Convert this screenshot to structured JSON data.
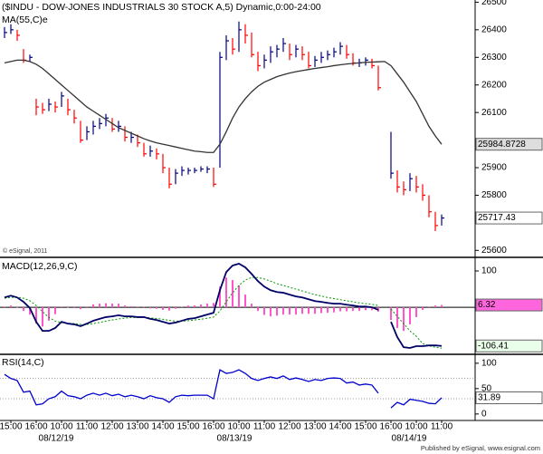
{
  "chart_data": [
    {
      "type": "ohlc",
      "title": "($INDU - DOW-JONES INDUSTRIALS 30 STOCK A,5) Dynamic,0:00-24:00",
      "annotation": "© eSignal, 2011",
      "ylim": [
        25578,
        26508
      ],
      "yticks": [
        25600,
        25800,
        25900,
        26100,
        26200,
        26300,
        26400,
        26500
      ],
      "up_color": "#000080",
      "down_color": "#ff0000",
      "high": [
        26410,
        26420,
        26400,
        26330,
        26310,
        26150,
        26135,
        26150,
        26140,
        26175,
        26150,
        26110,
        26070,
        26050,
        26070,
        26080,
        26095,
        26080,
        26070,
        26050,
        26030,
        26020,
        25990,
        25980,
        25970,
        25950,
        25900,
        25895,
        25905,
        25900,
        25900,
        25905,
        25905,
        25900,
        26320,
        26380,
        26370,
        26430,
        26420,
        26390,
        26320,
        26310,
        26340,
        26345,
        26370,
        26350,
        26345,
        26340,
        26320,
        26305,
        26320,
        26325,
        26335,
        26355,
        26345,
        26315,
        26295,
        26300,
        26295,
        26270,
        null,
        26030,
        25890,
        25850,
        25880,
        25870,
        25840,
        25800,
        25740,
        25730
      ],
      "low": [
        26370,
        26385,
        26360,
        26280,
        26285,
        26090,
        26095,
        26105,
        26100,
        26120,
        26090,
        26060,
        25990,
        26000,
        26020,
        26040,
        26050,
        26030,
        26030,
        25995,
        25990,
        25975,
        25940,
        25940,
        25930,
        25880,
        25825,
        25840,
        25870,
        25875,
        25880,
        25885,
        25880,
        25830,
        25900,
        26290,
        26310,
        26320,
        26350,
        26300,
        26250,
        26260,
        26280,
        26300,
        26320,
        26290,
        26300,
        26290,
        26260,
        26265,
        26280,
        26290,
        26300,
        26310,
        26295,
        26270,
        26265,
        26270,
        26260,
        26180,
        null,
        25860,
        25810,
        25800,
        25815,
        25810,
        25780,
        25720,
        25670,
        25690
      ],
      "close": [
        26390,
        26400,
        26380,
        26290,
        26300,
        26120,
        26110,
        26130,
        26120,
        26160,
        26110,
        26080,
        26000,
        26030,
        26050,
        26060,
        26080,
        26040,
        26050,
        26010,
        26010,
        25990,
        25950,
        25960,
        25950,
        25900,
        25840,
        25880,
        25890,
        25890,
        25890,
        25895,
        25895,
        25840,
        26300,
        26360,
        26330,
        26400,
        26380,
        26310,
        26270,
        26290,
        26320,
        26330,
        26350,
        26310,
        26330,
        26310,
        26270,
        26290,
        26300,
        26310,
        26320,
        26340,
        26310,
        26280,
        26280,
        26290,
        26270,
        26190,
        null,
        25880,
        25830,
        25820,
        25860,
        25830,
        25800,
        25740,
        25690,
        25717.43
      ],
      "series": [
        {
          "name": "MA(55,C)e",
          "color": "#333333",
          "values": [
            26280,
            26285,
            26290,
            26290,
            26285,
            26275,
            26260,
            26240,
            26220,
            26200,
            26180,
            26160,
            26140,
            26120,
            26105,
            26090,
            26075,
            26060,
            26045,
            26035,
            26025,
            26015,
            26005,
            25997,
            25990,
            25985,
            25980,
            25975,
            25970,
            25965,
            25960,
            25958,
            25955,
            25955,
            25985,
            26030,
            26080,
            26120,
            26150,
            26175,
            26195,
            26210,
            26220,
            26230,
            26237,
            26243,
            26248,
            26252,
            26256,
            26260,
            26263,
            26266,
            26270,
            26273,
            26276,
            26278,
            26280,
            26282,
            26283,
            26284,
            26285,
            26270,
            26240,
            26210,
            26175,
            26140,
            26095,
            26050,
            26015,
            25984.8728
          ]
        }
      ]
    },
    {
      "type": "macd",
      "title": "MACD(12,26,9,C)",
      "ylim": [
        -127,
        130
      ],
      "yticks": [
        100
      ],
      "baseline": 0,
      "macd_color": "#000066",
      "signal_color": "#009900",
      "histogram_color": "#ff55cc",
      "macd": [
        27,
        32,
        27,
        15,
        -2,
        -40,
        -65,
        -65,
        -57,
        -40,
        -45,
        -47,
        -52,
        -45,
        -37,
        -32,
        -27,
        -25,
        -22,
        -25,
        -25,
        -27,
        -27,
        -32,
        -35,
        -40,
        -45,
        -42,
        -37,
        -32,
        -30,
        -25,
        -20,
        -15,
        47,
        97,
        115,
        120,
        110,
        92,
        72,
        57,
        47,
        42,
        40,
        35,
        30,
        27,
        22,
        17,
        15,
        12,
        10,
        10,
        7,
        5,
        2,
        2,
        0,
        -7,
        null,
        -40,
        -82,
        -110,
        -112,
        -107,
        -107,
        -105,
        -105,
        -106.41
      ],
      "signal": [
        25,
        27,
        28,
        25,
        18,
        5,
        -12,
        -28,
        -38,
        -42,
        -44,
        -45,
        -47,
        -47,
        -45,
        -42,
        -38,
        -35,
        -32,
        -30,
        -28,
        -28,
        -28,
        -29,
        -31,
        -33,
        -36,
        -38,
        -38,
        -37,
        -35,
        -33,
        -30,
        -27,
        -10,
        15,
        40,
        60,
        75,
        82,
        82,
        78,
        72,
        65,
        60,
        55,
        50,
        45,
        40,
        35,
        31,
        27,
        24,
        21,
        18,
        15,
        12,
        10,
        8,
        5,
        null,
        -5,
        -25,
        -45,
        -65,
        -80,
        -100,
        -106,
        -110,
        -112.73
      ],
      "histogram": [
        2,
        5,
        -1,
        -10,
        -20,
        -45,
        -53,
        -37,
        -19,
        2,
        -1,
        -2,
        -5,
        2,
        8,
        10,
        11,
        10,
        10,
        5,
        3,
        1,
        1,
        -3,
        -4,
        -7,
        -9,
        -4,
        1,
        5,
        5,
        8,
        10,
        12,
        57,
        82,
        75,
        60,
        35,
        10,
        -10,
        -21,
        -25,
        -23,
        -20,
        -20,
        -20,
        -18,
        -18,
        -18,
        -16,
        -15,
        -14,
        -11,
        -11,
        -10,
        -10,
        -8,
        -8,
        -12,
        null,
        -35,
        -57,
        -65,
        -47,
        -27,
        -7,
        1,
        5,
        6.32
      ]
    },
    {
      "type": "line",
      "title": "RSI(14,C)",
      "ylim": [
        -11,
        114
      ],
      "yticks": [
        0,
        50,
        100
      ],
      "levels": [
        30,
        70
      ],
      "color": "#0000cc",
      "values": [
        78,
        70,
        66,
        43,
        45,
        18,
        20,
        30,
        34,
        45,
        36,
        34,
        30,
        37,
        41,
        37,
        41,
        36,
        39,
        34,
        37,
        34,
        30,
        36,
        32,
        30,
        23,
        34,
        37,
        36,
        37,
        37,
        37,
        30,
        87,
        80,
        82,
        87,
        80,
        70,
        66,
        70,
        73,
        70,
        75,
        68,
        71,
        68,
        64,
        68,
        66,
        70,
        71,
        70,
        61,
        63,
        57,
        59,
        57,
        41,
        null,
        12,
        23,
        18,
        29,
        27,
        25,
        21,
        20,
        31.89
      ],
      "categories": [
        null,
        "15:00",
        null,
        null,
        null,
        "16:00",
        null,
        null,
        null,
        "10:00",
        null,
        null,
        null,
        "11:00",
        null,
        null,
        null,
        "12:00",
        null,
        null,
        null,
        "13:00",
        null,
        null,
        null,
        "14:00",
        null,
        null,
        null,
        "15:00",
        null,
        null,
        null,
        "16:00",
        null,
        null,
        null,
        "10:00",
        null,
        null,
        null,
        "11:00",
        null,
        null,
        null,
        "12:00",
        null,
        null,
        null,
        "13:00",
        null,
        null,
        null,
        "14:00",
        null,
        null,
        null,
        "15:00",
        null,
        null,
        null,
        "16:00",
        null,
        null,
        null,
        "10:00",
        null,
        null,
        null,
        "11:00"
      ],
      "annotations": [
        "08/12/19",
        "08/13/19",
        "08/14/19"
      ]
    }
  ],
  "footer": "Published by eSignal, www.esignal.com"
}
